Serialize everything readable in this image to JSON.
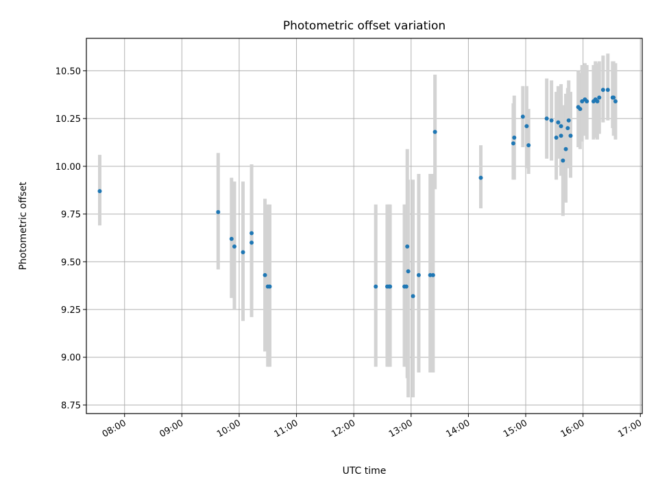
{
  "chart_data": {
    "type": "scatter",
    "title": "Photometric offset variation",
    "xlabel": "UTC time",
    "ylabel": "Photometric offset",
    "grid": true,
    "xlim": [
      "07:20",
      "17:02"
    ],
    "ylim": [
      8.705,
      10.67
    ],
    "x_ticks": [
      "08:00",
      "09:00",
      "10:00",
      "11:00",
      "12:00",
      "13:00",
      "14:00",
      "15:00",
      "16:00",
      "17:00"
    ],
    "y_ticks": [
      "8.75",
      "9.00",
      "9.25",
      "9.50",
      "9.75",
      "10.00",
      "10.25",
      "10.50"
    ],
    "colors": {
      "points": "#1f77b4",
      "error_bars": "#d3d3d3",
      "grid": "#b0b0b0"
    },
    "series": [
      {
        "x": [
          "07:34",
          "09:38",
          "09:52",
          "09:55",
          "10:04",
          "10:13",
          "10:13",
          "10:27",
          "10:30",
          "10:32",
          "12:23",
          "12:35",
          "12:37",
          "12:38",
          "12:53",
          "12:55",
          "12:56",
          "12:57",
          "13:02",
          "13:08",
          "13:20",
          "13:23",
          "13:25",
          "14:13",
          "14:47",
          "14:48",
          "14:57",
          "15:01",
          "15:03",
          "15:22",
          "15:27",
          "15:32",
          "15:34",
          "15:37",
          "15:37",
          "15:39",
          "15:42",
          "15:44",
          "15:45",
          "15:47",
          "15:55",
          "15:57",
          "15:59",
          "16:02",
          "16:04",
          "16:11",
          "16:13",
          "16:15",
          "16:17",
          "16:21",
          "16:26",
          "16:31",
          "16:32",
          "16:34"
        ],
        "y": [
          9.87,
          9.76,
          9.62,
          9.58,
          9.55,
          9.6,
          9.65,
          9.43,
          9.37,
          9.37,
          9.37,
          9.37,
          9.37,
          9.37,
          9.37,
          9.37,
          9.58,
          9.45,
          9.32,
          9.43,
          9.43,
          9.43,
          10.18,
          9.94,
          10.12,
          10.15,
          10.26,
          10.21,
          10.11,
          10.25,
          10.24,
          10.15,
          10.23,
          10.21,
          10.16,
          10.03,
          10.09,
          10.2,
          10.24,
          10.16,
          10.31,
          10.3,
          10.34,
          10.35,
          10.34,
          10.34,
          10.35,
          10.34,
          10.36,
          10.4,
          10.4,
          10.36,
          10.36,
          10.34
        ],
        "y_low": [
          9.69,
          9.46,
          9.31,
          9.25,
          9.19,
          9.3,
          9.21,
          9.03,
          8.95,
          8.95,
          8.95,
          8.95,
          8.95,
          8.95,
          8.95,
          8.95,
          8.89,
          8.79,
          8.79,
          8.92,
          8.92,
          8.92,
          9.88,
          9.78,
          9.93,
          9.93,
          10.1,
          9.99,
          9.96,
          10.04,
          10.03,
          9.93,
          10.04,
          9.98,
          9.95,
          9.74,
          9.81,
          9.99,
          10.03,
          9.94,
          10.1,
          10.09,
          10.13,
          10.16,
          10.14,
          10.14,
          10.15,
          10.14,
          10.17,
          10.23,
          10.24,
          10.2,
          10.16,
          10.14
        ],
        "y_high": [
          10.06,
          10.07,
          9.94,
          9.92,
          9.92,
          9.88,
          10.01,
          9.83,
          9.8,
          9.8,
          9.8,
          9.8,
          9.8,
          9.8,
          9.8,
          9.8,
          10.09,
          9.93,
          9.93,
          9.96,
          9.96,
          9.96,
          10.48,
          10.11,
          10.33,
          10.37,
          10.42,
          10.42,
          10.3,
          10.46,
          10.45,
          10.39,
          10.42,
          10.43,
          10.37,
          10.32,
          10.38,
          10.41,
          10.45,
          10.39,
          10.5,
          10.49,
          10.53,
          10.54,
          10.53,
          10.53,
          10.55,
          10.54,
          10.55,
          10.58,
          10.59,
          10.55,
          10.55,
          10.54
        ]
      }
    ]
  }
}
